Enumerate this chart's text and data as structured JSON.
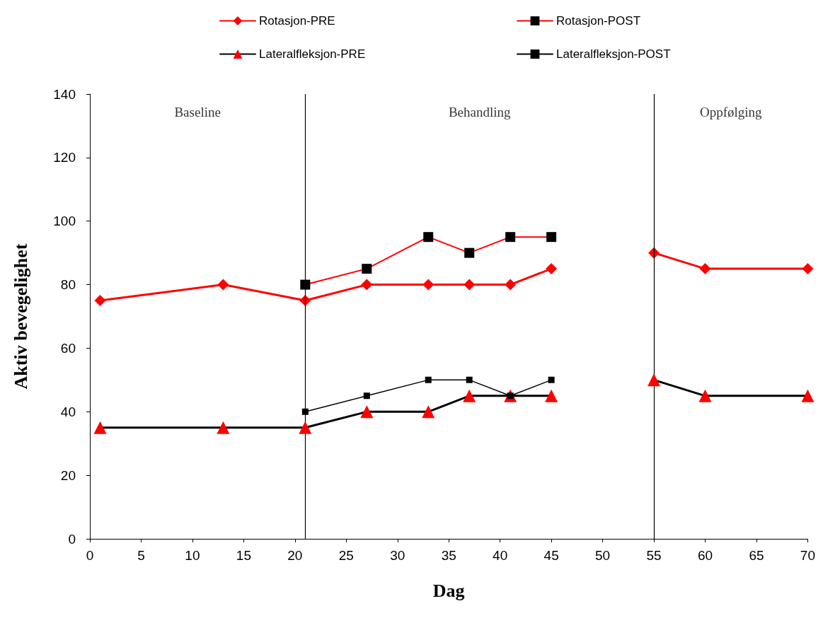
{
  "chart_data": {
    "type": "line",
    "xlabel": "Dag",
    "ylabel": "Aktiv bevegelighet",
    "xlim": [
      0,
      70
    ],
    "xticks": [
      0,
      5,
      10,
      15,
      20,
      25,
      30,
      35,
      40,
      45,
      50,
      55,
      60,
      65,
      70
    ],
    "ylim": [
      0,
      140
    ],
    "yticks": [
      0,
      20,
      40,
      60,
      80,
      100,
      120,
      140
    ],
    "grid": false,
    "legend": "top",
    "series": [
      {
        "name": "Rotasjon-PRE",
        "color": "#ff0000",
        "marker": "diamond",
        "x": [
          1,
          13,
          21,
          27,
          33,
          37,
          41,
          45,
          50,
          55,
          60,
          70
        ],
        "values": [
          75,
          80,
          75,
          80,
          80,
          80,
          80,
          85,
          null,
          90,
          85,
          85
        ]
      },
      {
        "name": "Rotasjon-POST",
        "color": "#ff0000",
        "marker": "square",
        "x": [
          21,
          27,
          33,
          37,
          41,
          45
        ],
        "values": [
          80,
          85,
          95,
          90,
          95,
          95
        ]
      },
      {
        "name": "Lateralfleksjon-PRE",
        "color": "#000000",
        "marker": "triangle",
        "x": [
          1,
          13,
          21,
          27,
          33,
          37,
          41,
          45,
          50,
          55,
          60,
          70
        ],
        "values": [
          35,
          35,
          35,
          40,
          40,
          45,
          45,
          45,
          null,
          50,
          45,
          45
        ]
      },
      {
        "name": "Lateralfleksjon-POST",
        "color": "#000000",
        "marker": "cross",
        "x": [
          21,
          27,
          33,
          37,
          41,
          45
        ],
        "values": [
          40,
          45,
          50,
          50,
          45,
          50
        ]
      }
    ],
    "ref_lines": [
      {
        "axis": "x",
        "value": 21,
        "color": "#000000"
      },
      {
        "axis": "x",
        "value": 55,
        "color": "#000000"
      }
    ],
    "annotations": [
      "Baseline",
      "Behandling",
      "Oppfølging"
    ]
  }
}
